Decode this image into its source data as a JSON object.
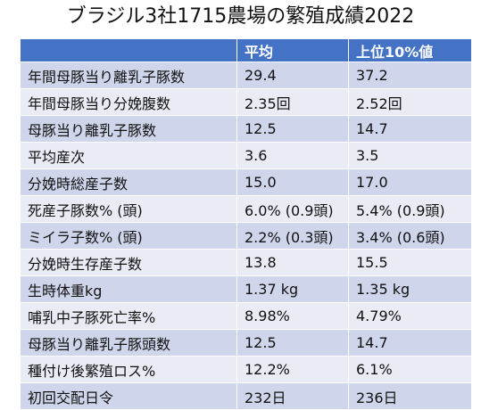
{
  "title": "ブラジル3社1715農場の繁殖成績2022",
  "table": {
    "headers": [
      "",
      "平均",
      "上位10%値"
    ],
    "rows": [
      [
        "年間母豚当り離乳子豚数",
        "29.4",
        "37.2"
      ],
      [
        "年間母豚当り分娩腹数",
        "2.35回",
        "2.52回"
      ],
      [
        "母豚当り離乳子豚数",
        "12.5",
        "14.7"
      ],
      [
        "平均産次",
        "3.6",
        "3.5"
      ],
      [
        "分娩時総産子数",
        "15.0",
        "17.0"
      ],
      [
        "死産子豚数% (頭)",
        "6.0% (0.9頭)",
        "5.4% (0.9頭)"
      ],
      [
        "ミイラ子数% (頭)",
        "2.2% (0.3頭)",
        "3.4% (0.6頭)"
      ],
      [
        "分娩時生存産子数",
        "13.8",
        "15.5"
      ],
      [
        "生時体重kg",
        "1.37 kg",
        "1.35 kg"
      ],
      [
        "哺乳中子豚死亡率%",
        "8.98%",
        "4.79%"
      ],
      [
        "母豚当り離乳子豚頭数",
        "12.5",
        "14.7"
      ],
      [
        "種付け後繁殖ロス%",
        "12.2%",
        "6.1%"
      ],
      [
        "初回交配日令",
        "232日",
        "236日"
      ]
    ]
  },
  "colors": {
    "header_bg": "#4472c4",
    "row_odd_bg": "#cfd5ea",
    "row_even_bg": "#e9ebf5"
  }
}
